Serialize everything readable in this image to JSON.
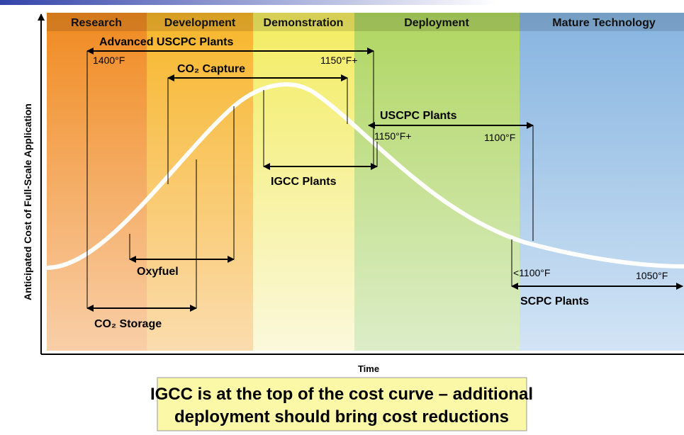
{
  "phases": [
    "Research",
    "Development",
    "Demonstration",
    "Deployment",
    "Mature Technology"
  ],
  "axes": {
    "y_label": "Anticipated Cost of Full-Scale Application",
    "x_label": "Time"
  },
  "technologies": {
    "advanced_uscpc": {
      "label": "Advanced USCPC Plants",
      "start": "1400°F",
      "end": "1150°F+"
    },
    "co2_capture": {
      "label": "CO₂ Capture"
    },
    "igcc": {
      "label": "IGCC Plants"
    },
    "uscpc": {
      "label": "USCPC Plants",
      "start": "1150°F+",
      "end": "1100°F"
    },
    "oxyfuel": {
      "label": "Oxyfuel"
    },
    "co2_storage": {
      "label": "CO₂ Storage"
    },
    "scpc": {
      "label": "SCPC Plants",
      "start": "<1100°F",
      "end": "1050°F"
    }
  },
  "message": [
    "IGCC is at the top of the cost curve – additional",
    "deployment should bring cost reductions"
  ]
}
